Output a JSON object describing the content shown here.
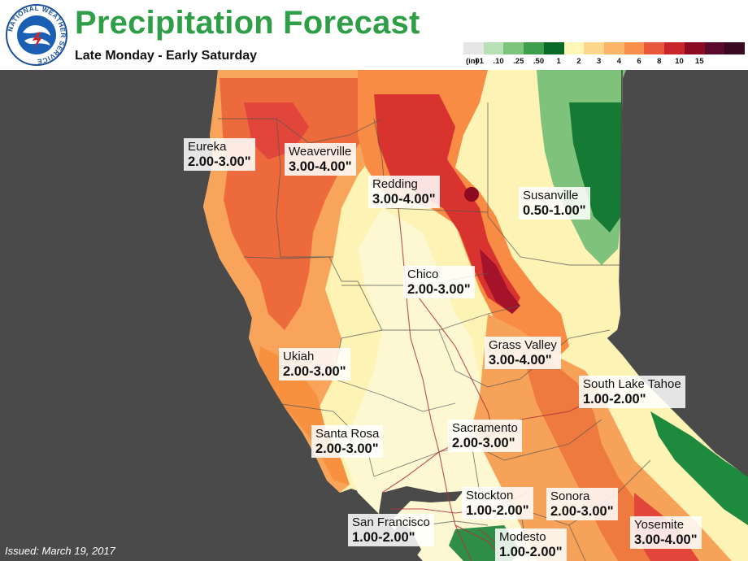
{
  "header": {
    "title": "Precipitation Forecast",
    "subtitle": "Late Monday - Early Saturday"
  },
  "logo": {
    "text": "NATIONAL WEATHER SERVICE",
    "icon": "nws-logo-icon"
  },
  "legend": {
    "unit": "(in)",
    "bins": [
      {
        "label": ".01",
        "color": "#e6e6e6"
      },
      {
        "label": ".10",
        "color": "#b7e0b5"
      },
      {
        "label": ".25",
        "color": "#7dc57c"
      },
      {
        "label": ".50",
        "color": "#3f9e4b"
      },
      {
        "label": "1",
        "color": "#0a6a2a"
      },
      {
        "label": "2",
        "color": "#fdf6b6"
      },
      {
        "label": "3",
        "color": "#fcd78c"
      },
      {
        "label": "4",
        "color": "#fbb468"
      },
      {
        "label": "6",
        "color": "#f88f4a"
      },
      {
        "label": "8",
        "color": "#e8583a"
      },
      {
        "label": "10",
        "color": "#c8262c"
      },
      {
        "label": "15",
        "color": "#8c0a22"
      },
      {
        "label": "",
        "color": "#5a0a2c"
      },
      {
        "label": "",
        "color": "#3a0a22"
      }
    ]
  },
  "cities": [
    {
      "name": "Eureka",
      "range": "2.00-3.00\""
    },
    {
      "name": "Weaverville",
      "range": "3.00-4.00\""
    },
    {
      "name": "Redding",
      "range": "3.00-4.00\""
    },
    {
      "name": "Susanville",
      "range": "0.50-1.00\""
    },
    {
      "name": "Chico",
      "range": "2.00-3.00\""
    },
    {
      "name": "Grass Valley",
      "range": "3.00-4.00\""
    },
    {
      "name": "Ukiah",
      "range": "2.00-3.00\""
    },
    {
      "name": "South Lake Tahoe",
      "range": "1.00-2.00\""
    },
    {
      "name": "Santa Rosa",
      "range": "2.00-3.00\""
    },
    {
      "name": "Sacramento",
      "range": "2.00-3.00\""
    },
    {
      "name": "Stockton",
      "range": "1.00-2.00\""
    },
    {
      "name": "Sonora",
      "range": "2.00-3.00\""
    },
    {
      "name": "San Francisco",
      "range": "1.00-2.00\""
    },
    {
      "name": "Modesto",
      "range": "1.00-2.00\""
    },
    {
      "name": "Yosemite",
      "range": "3.00-4.00\""
    }
  ],
  "footer": {
    "issued": "Issued: March 19, 2017"
  },
  "colors": {
    "title": "#2e9e47",
    "ocean": "#4a4a4a",
    "valley": "#fdf6c6",
    "heavy": "#c8262c"
  }
}
